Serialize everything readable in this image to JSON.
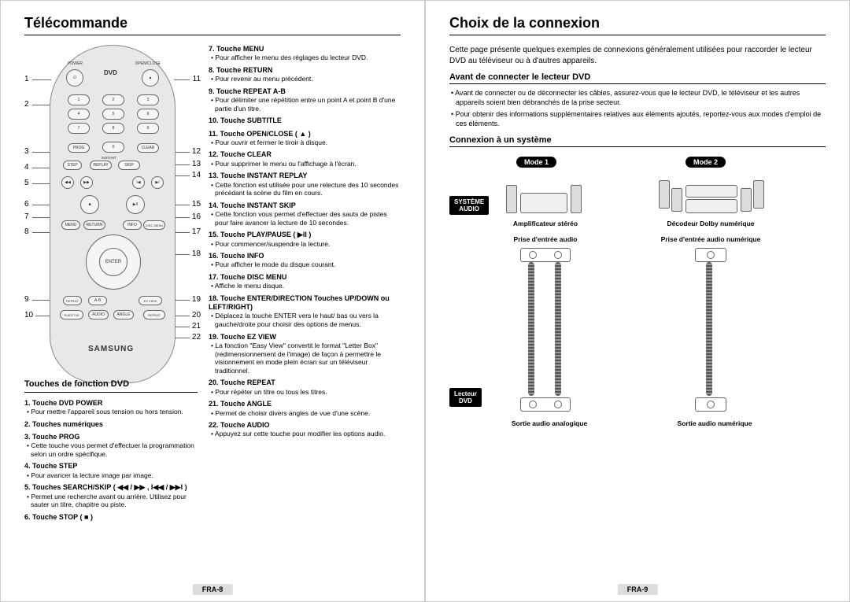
{
  "left": {
    "title": "Télécommande",
    "sectionTitle": "Touches de fonction DVD",
    "numbersLeft": [
      "1",
      "2",
      "3",
      "4",
      "5",
      "6",
      "7",
      "8",
      "9",
      "10"
    ],
    "numbersRight": [
      "11",
      "12",
      "13",
      "14",
      "15",
      "16",
      "17",
      "18",
      "19",
      "20",
      "21",
      "22"
    ],
    "remoteLabels": {
      "power": "POWER",
      "openclose": "OPEN/CLOSE",
      "dvd": "DVD",
      "prog": "PROG",
      "clear": "CLEAR",
      "step": "STEP",
      "instant": "INSTANT",
      "replay": "REPLAY",
      "skip": "SKIP",
      "menu": "MENU",
      "return": "RETURN",
      "info": "INFO",
      "disc": "DISC MENU",
      "repeat": "REPEAT",
      "ab": "A-B",
      "ezview": "EZ VIEW",
      "subtitle": "SUBTITLE",
      "audio": "AUDIO",
      "angle": "ANGLE",
      "repeat2": "REPEAT",
      "enter": "ENTER",
      "brand": "SAMSUNG"
    },
    "itemsA": [
      {
        "t": "1. Touche DVD POWER",
        "d": "Pour mettre l'appareil sous tension ou hors tension."
      },
      {
        "t": "2. Touches numériques",
        "d": ""
      },
      {
        "t": "3. Touche PROG",
        "d": "Cette touche vous permet d'effectuer la programmation selon un ordre spécifique."
      },
      {
        "t": "4. Touche STEP",
        "d": "Pour avancer la lecture image par image."
      },
      {
        "t": "5. Touches SEARCH/SKIP ( ◀◀ / ▶▶ , I◀◀ / ▶▶I )",
        "d": "Permet une recherche avant ou arrière. Utilisez pour sauter un titre, chapitre ou piste."
      },
      {
        "t": "6. Touche STOP ( ■ )",
        "d": ""
      }
    ],
    "itemsB": [
      {
        "t": "7. Touche MENU",
        "d": "Pour afficher le menu des réglages du lecteur DVD."
      },
      {
        "t": "8. Touche RETURN",
        "d": "Pour revenir au menu précédent."
      },
      {
        "t": "9. Touche REPEAT A-B",
        "d": "Pour délimiter une répétition entre un point A et point B d'une partie d'un titre."
      },
      {
        "t": "10. Touche SUBTITLE",
        "d": ""
      },
      {
        "t": "11. Touche OPEN/CLOSE ( ▲ )",
        "d": "Pour ouvrir et fermer le tiroir à disque."
      },
      {
        "t": "12. Touche CLEAR",
        "d": "Pour supprimer le menu ou l'affichage à l'écran."
      },
      {
        "t": "13. Touche INSTANT REPLAY",
        "d": "Cette fonction est utilisée pour une relecture des 10 secondes précédant la scène du film en cours."
      },
      {
        "t": "14. Touche INSTANT SKIP",
        "d": "Cette fonction vous permet d'effectuer des sauts de pistes pour faire avancer la lecture de 10 secondes."
      },
      {
        "t": "15. Touche PLAY/PAUSE ( ▶II )",
        "d": "Pour commencer/suspendre la lecture."
      },
      {
        "t": "16. Touche INFO",
        "d": "Pour afficher le mode du disque courant."
      },
      {
        "t": "17. Touche DISC MENU",
        "d": "Affiche le menu disque."
      },
      {
        "t": "18. Touche ENTER/DIRECTION Touches UP/DOWN ou LEFT/RIGHT)",
        "d": "Déplacez la touche ENTER vers le haut/ bas ou vers la gauche/droite pour choisir des options de menus."
      },
      {
        "t": "19. Touche EZ VIEW",
        "d": "La fonction \"Easy View\" convertit le format \"Letter Box\" (redimensionnement de l'image) de façon à permettre le visionnement en mode plein écran sur un téléviseur traditionnel."
      },
      {
        "t": "20. Touche REPEAT",
        "d": "Pour répéter un titre ou tous les titres."
      },
      {
        "t": "21. Touche ANGLE",
        "d": "Permet de choisir divers angles de vue d'une scène."
      },
      {
        "t": "22. Touche AUDIO",
        "d": "Appuyez sur cette touche pour modifier les options audio."
      }
    ],
    "pageNum": "FRA-8"
  },
  "right": {
    "title": "Choix de la connexion",
    "intro": "Cette page présente quelques exemples de connexions généralement utilisées pour raccorder le lecteur DVD au téléviseur ou à d'autres appareils.",
    "sec1": "Avant de connecter le lecteur DVD",
    "sec1bullets": [
      "Avant de connecter ou de déconnecter les câbles, assurez-vous que le lecteur DVD, le téléviseur et les autres appareils soient bien débranchés de la prise secteur.",
      "Pour obtenir des informations supplémentaires relatives aux éléments ajoutés, reportez-vous aux modes d'emploi de ces éléments."
    ],
    "sec2": "Connexion à un système",
    "diagram": {
      "mode1": "Mode 1",
      "mode2": "Mode 2",
      "systeme": "SYSTÈME\nAUDIO",
      "amp": "Amplificateur stéréo",
      "dolby": "Décodeur Dolby numérique",
      "prise1": "Prise d'entrée audio",
      "prise2": "Prise d'entrée audio numérique",
      "lecteur": "Lecteur\nDVD",
      "sortie1": "Sortie audio analogique",
      "sortie2": "Sortie audio numérique"
    },
    "pageNum": "FRA-9"
  }
}
